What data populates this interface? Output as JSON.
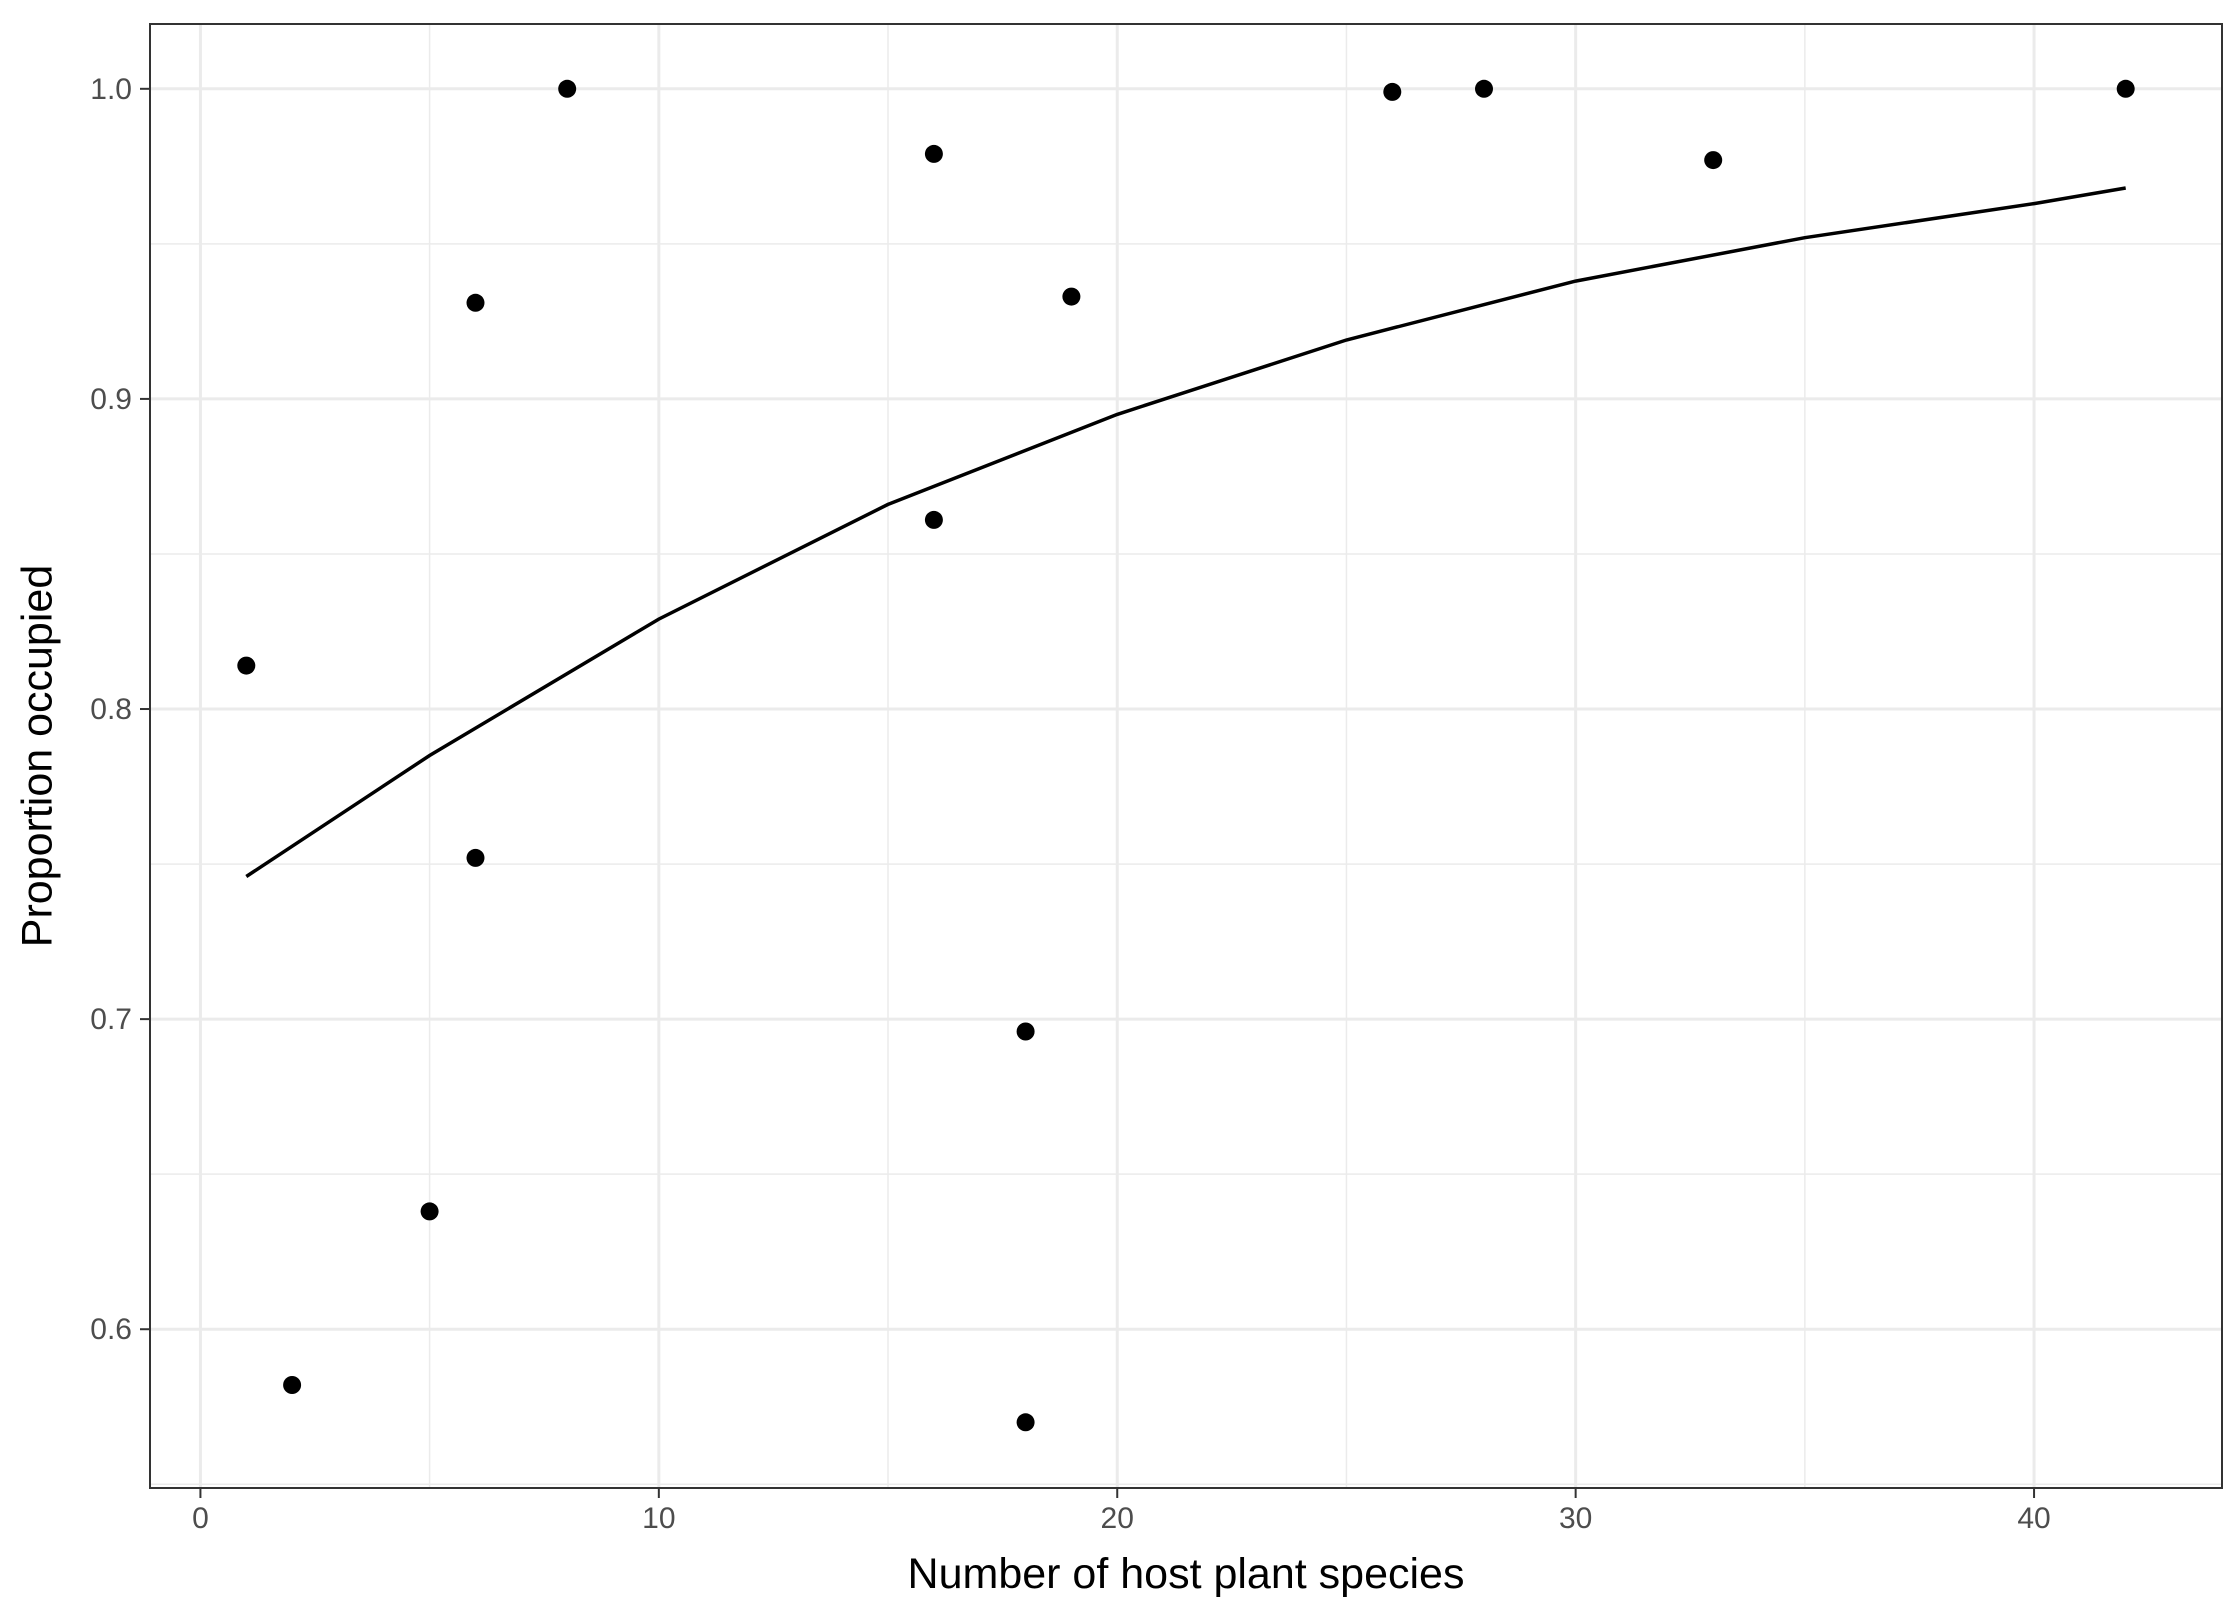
{
  "chart_data": {
    "type": "scatter",
    "title": "",
    "xlabel": "Number of host plant species",
    "ylabel": "Proportion occupied",
    "xlim": [
      -1.1,
      44.1
    ],
    "ylim": [
      0.5488,
      1.0209
    ],
    "x_ticks": [
      0,
      10,
      20,
      30,
      40
    ],
    "x_tick_labels": [
      "0",
      "10",
      "20",
      "30",
      "40"
    ],
    "y_ticks": [
      0.6,
      0.7,
      0.8,
      0.9,
      1.0
    ],
    "y_tick_labels": [
      "0.6",
      "0.7",
      "0.8",
      "0.9",
      "1.0"
    ],
    "grid": true,
    "legend": "none",
    "colors": {
      "point": "#000000",
      "line": "#000000",
      "grid": "#ebebeb",
      "panel_border": "#333333",
      "tick_text": "#4d4d4d"
    },
    "series": [
      {
        "type": "scatter",
        "x": [
          1,
          2,
          5,
          6,
          6,
          8,
          16,
          16,
          18,
          18,
          19,
          26,
          28,
          33,
          42
        ],
        "y": [
          0.814,
          0.582,
          0.638,
          0.931,
          0.752,
          1.0,
          0.979,
          0.861,
          0.696,
          0.57,
          0.933,
          0.999,
          1.0,
          0.977,
          1.0
        ]
      },
      {
        "type": "line",
        "x": [
          1,
          5,
          10,
          15,
          20,
          25,
          30,
          35,
          40,
          42
        ],
        "y": [
          0.746,
          0.785,
          0.829,
          0.866,
          0.895,
          0.919,
          0.938,
          0.952,
          0.963,
          0.968
        ]
      }
    ]
  }
}
